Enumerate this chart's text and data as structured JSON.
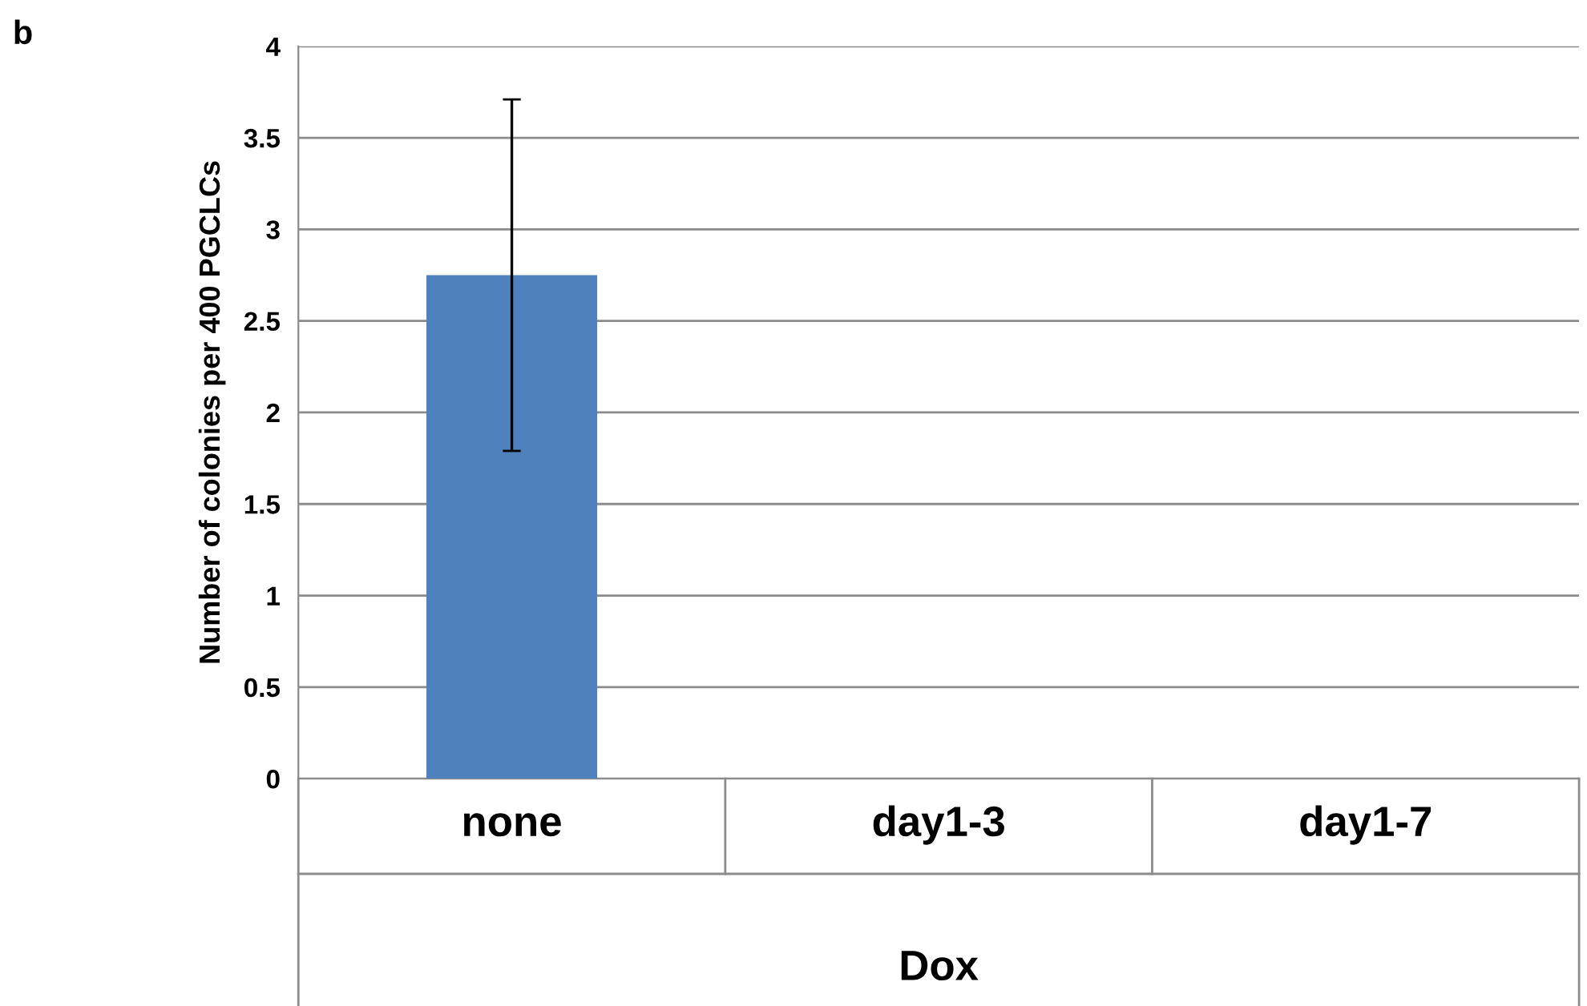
{
  "chart_data": {
    "type": "bar",
    "annotations": [
      "b"
    ],
    "xlabel": "Dox",
    "ylabel": "Number of colonies per 400 PGCLCs",
    "categories": [
      "none",
      "day1-3",
      "day1-7"
    ],
    "values": [
      2.75,
      0,
      0
    ],
    "errors": [
      0.96,
      null,
      null
    ],
    "color": "#4f81bd",
    "ylim": [
      0,
      4
    ],
    "yticks": [
      0,
      0.5,
      1,
      1.5,
      2,
      2.5,
      3,
      3.5,
      4
    ],
    "grid": "y"
  }
}
